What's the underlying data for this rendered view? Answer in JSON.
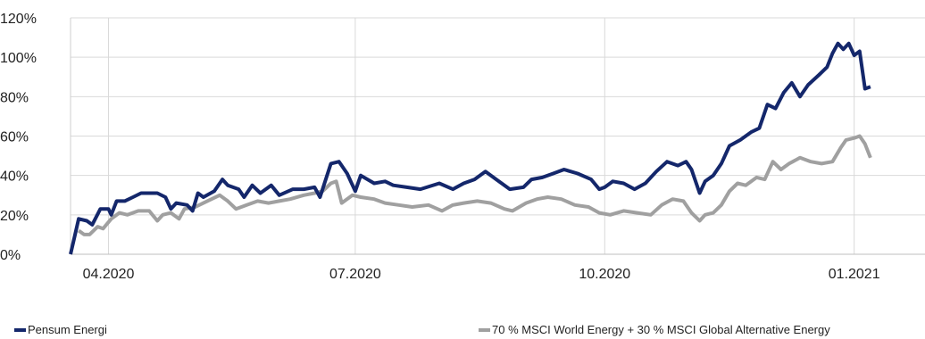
{
  "chart_data": {
    "type": "line",
    "title": "",
    "xlabel": "",
    "ylabel": "",
    "ylim": [
      0,
      120
    ],
    "y_ticks": [
      "0%",
      "20%",
      "40%",
      "60%",
      "80%",
      "100%",
      "120%"
    ],
    "y_tick_values": [
      0,
      20,
      40,
      60,
      80,
      100,
      120
    ],
    "x_tick_labels": [
      "04.2020",
      "07.2020",
      "10.2020",
      "01.2021"
    ],
    "x_tick_dates": [
      "2020-04-01",
      "2020-07-01",
      "2020-10-01",
      "2021-01-01"
    ],
    "x_range": [
      "2020-03-18",
      "2021-01-07"
    ],
    "grid": true,
    "legend_position": "bottom",
    "series": [
      {
        "name": "Pensum Energi",
        "color": "#14276b",
        "points": [
          [
            "2020-03-18",
            0
          ],
          [
            "2020-03-20",
            12
          ],
          [
            "2020-03-21",
            18
          ],
          [
            "2020-03-24",
            17
          ],
          [
            "2020-03-26",
            15
          ],
          [
            "2020-03-29",
            23
          ],
          [
            "2020-04-01",
            23
          ],
          [
            "2020-04-02",
            20
          ],
          [
            "2020-04-04",
            27
          ],
          [
            "2020-04-07",
            27
          ],
          [
            "2020-04-10",
            29
          ],
          [
            "2020-04-13",
            31
          ],
          [
            "2020-04-19",
            31
          ],
          [
            "2020-04-22",
            29
          ],
          [
            "2020-04-24",
            23
          ],
          [
            "2020-04-26",
            26
          ],
          [
            "2020-04-30",
            25
          ],
          [
            "2020-05-02",
            22
          ],
          [
            "2020-05-04",
            31
          ],
          [
            "2020-05-06",
            29
          ],
          [
            "2020-05-10",
            32
          ],
          [
            "2020-05-13",
            38
          ],
          [
            "2020-05-15",
            35
          ],
          [
            "2020-05-19",
            33
          ],
          [
            "2020-05-21",
            29
          ],
          [
            "2020-05-24",
            35
          ],
          [
            "2020-05-27",
            31
          ],
          [
            "2020-05-31",
            35
          ],
          [
            "2020-06-03",
            30
          ],
          [
            "2020-06-08",
            33
          ],
          [
            "2020-06-12",
            33
          ],
          [
            "2020-06-16",
            34
          ],
          [
            "2020-06-18",
            29
          ],
          [
            "2020-06-22",
            46
          ],
          [
            "2020-06-25",
            47
          ],
          [
            "2020-06-28",
            41
          ],
          [
            "2020-07-01",
            32
          ],
          [
            "2020-07-03",
            40
          ],
          [
            "2020-07-08",
            36
          ],
          [
            "2020-07-12",
            37
          ],
          [
            "2020-07-15",
            35
          ],
          [
            "2020-07-20",
            34
          ],
          [
            "2020-07-25",
            33
          ],
          [
            "2020-08-01",
            36
          ],
          [
            "2020-08-06",
            33
          ],
          [
            "2020-08-10",
            36
          ],
          [
            "2020-08-14",
            38
          ],
          [
            "2020-08-18",
            42
          ],
          [
            "2020-08-22",
            38
          ],
          [
            "2020-08-27",
            33
          ],
          [
            "2020-09-01",
            34
          ],
          [
            "2020-09-04",
            38
          ],
          [
            "2020-09-08",
            39
          ],
          [
            "2020-09-12",
            41
          ],
          [
            "2020-09-16",
            43
          ],
          [
            "2020-09-21",
            41
          ],
          [
            "2020-09-26",
            38
          ],
          [
            "2020-09-29",
            33
          ],
          [
            "2020-10-01",
            34
          ],
          [
            "2020-10-04",
            37
          ],
          [
            "2020-10-08",
            36
          ],
          [
            "2020-10-12",
            33
          ],
          [
            "2020-10-16",
            36
          ],
          [
            "2020-10-20",
            42
          ],
          [
            "2020-10-24",
            47
          ],
          [
            "2020-10-28",
            45
          ],
          [
            "2020-10-31",
            47
          ],
          [
            "2020-11-02",
            43
          ],
          [
            "2020-11-05",
            31
          ],
          [
            "2020-11-07",
            37
          ],
          [
            "2020-11-10",
            40
          ],
          [
            "2020-11-13",
            46
          ],
          [
            "2020-11-16",
            55
          ],
          [
            "2020-11-20",
            58
          ],
          [
            "2020-11-24",
            62
          ],
          [
            "2020-11-27",
            64
          ],
          [
            "2020-11-30",
            76
          ],
          [
            "2020-12-03",
            74
          ],
          [
            "2020-12-06",
            82
          ],
          [
            "2020-12-09",
            87
          ],
          [
            "2020-12-12",
            80
          ],
          [
            "2020-12-15",
            86
          ],
          [
            "2020-12-19",
            91
          ],
          [
            "2020-12-22",
            95
          ],
          [
            "2020-12-24",
            102
          ],
          [
            "2020-12-26",
            107
          ],
          [
            "2020-12-28",
            104
          ],
          [
            "2020-12-30",
            107
          ],
          [
            "2021-01-01",
            101
          ],
          [
            "2021-01-03",
            103
          ],
          [
            "2021-01-05",
            84
          ],
          [
            "2021-01-07",
            85
          ]
        ]
      },
      {
        "name": "70 % MSCI World Energy + 30 % MSCI Global Alternative Energy",
        "color": "#a0a0a0",
        "points": [
          [
            "2020-03-21",
            12
          ],
          [
            "2020-03-23",
            10
          ],
          [
            "2020-03-25",
            10
          ],
          [
            "2020-03-28",
            14
          ],
          [
            "2020-03-30",
            13
          ],
          [
            "2020-04-02",
            18
          ],
          [
            "2020-04-05",
            21
          ],
          [
            "2020-04-08",
            20
          ],
          [
            "2020-04-12",
            22
          ],
          [
            "2020-04-16",
            22
          ],
          [
            "2020-04-19",
            17
          ],
          [
            "2020-04-21",
            20
          ],
          [
            "2020-04-24",
            21
          ],
          [
            "2020-04-27",
            18
          ],
          [
            "2020-04-29",
            23
          ],
          [
            "2020-05-03",
            24
          ],
          [
            "2020-05-06",
            26
          ],
          [
            "2020-05-09",
            28
          ],
          [
            "2020-05-12",
            30
          ],
          [
            "2020-05-15",
            27
          ],
          [
            "2020-05-18",
            23
          ],
          [
            "2020-05-22",
            25
          ],
          [
            "2020-05-26",
            27
          ],
          [
            "2020-05-30",
            26
          ],
          [
            "2020-06-03",
            27
          ],
          [
            "2020-06-07",
            28
          ],
          [
            "2020-06-12",
            30
          ],
          [
            "2020-06-16",
            31
          ],
          [
            "2020-06-19",
            32
          ],
          [
            "2020-06-22",
            36
          ],
          [
            "2020-06-24",
            37
          ],
          [
            "2020-06-26",
            26
          ],
          [
            "2020-06-30",
            30
          ],
          [
            "2020-07-03",
            29
          ],
          [
            "2020-07-08",
            28
          ],
          [
            "2020-07-12",
            26
          ],
          [
            "2020-07-17",
            25
          ],
          [
            "2020-07-22",
            24
          ],
          [
            "2020-07-28",
            25
          ],
          [
            "2020-08-02",
            22
          ],
          [
            "2020-08-06",
            25
          ],
          [
            "2020-08-10",
            26
          ],
          [
            "2020-08-15",
            27
          ],
          [
            "2020-08-20",
            26
          ],
          [
            "2020-08-25",
            23
          ],
          [
            "2020-08-28",
            22
          ],
          [
            "2020-09-02",
            26
          ],
          [
            "2020-09-06",
            28
          ],
          [
            "2020-09-10",
            29
          ],
          [
            "2020-09-15",
            28
          ],
          [
            "2020-09-20",
            25
          ],
          [
            "2020-09-25",
            24
          ],
          [
            "2020-09-29",
            21
          ],
          [
            "2020-10-03",
            20
          ],
          [
            "2020-10-08",
            22
          ],
          [
            "2020-10-13",
            21
          ],
          [
            "2020-10-18",
            20
          ],
          [
            "2020-10-22",
            25
          ],
          [
            "2020-10-26",
            28
          ],
          [
            "2020-10-30",
            27
          ],
          [
            "2020-11-02",
            21
          ],
          [
            "2020-11-05",
            17
          ],
          [
            "2020-11-07",
            20
          ],
          [
            "2020-11-10",
            21
          ],
          [
            "2020-11-13",
            25
          ],
          [
            "2020-11-16",
            32
          ],
          [
            "2020-11-19",
            36
          ],
          [
            "2020-11-22",
            35
          ],
          [
            "2020-11-26",
            39
          ],
          [
            "2020-11-29",
            38
          ],
          [
            "2020-12-02",
            47
          ],
          [
            "2020-12-05",
            43
          ],
          [
            "2020-12-08",
            46
          ],
          [
            "2020-12-12",
            49
          ],
          [
            "2020-12-16",
            47
          ],
          [
            "2020-12-20",
            46
          ],
          [
            "2020-12-24",
            47
          ],
          [
            "2020-12-27",
            54
          ],
          [
            "2020-12-29",
            58
          ],
          [
            "2021-01-01",
            59
          ],
          [
            "2021-01-03",
            60
          ],
          [
            "2021-01-05",
            56
          ],
          [
            "2021-01-07",
            49
          ]
        ]
      }
    ]
  }
}
